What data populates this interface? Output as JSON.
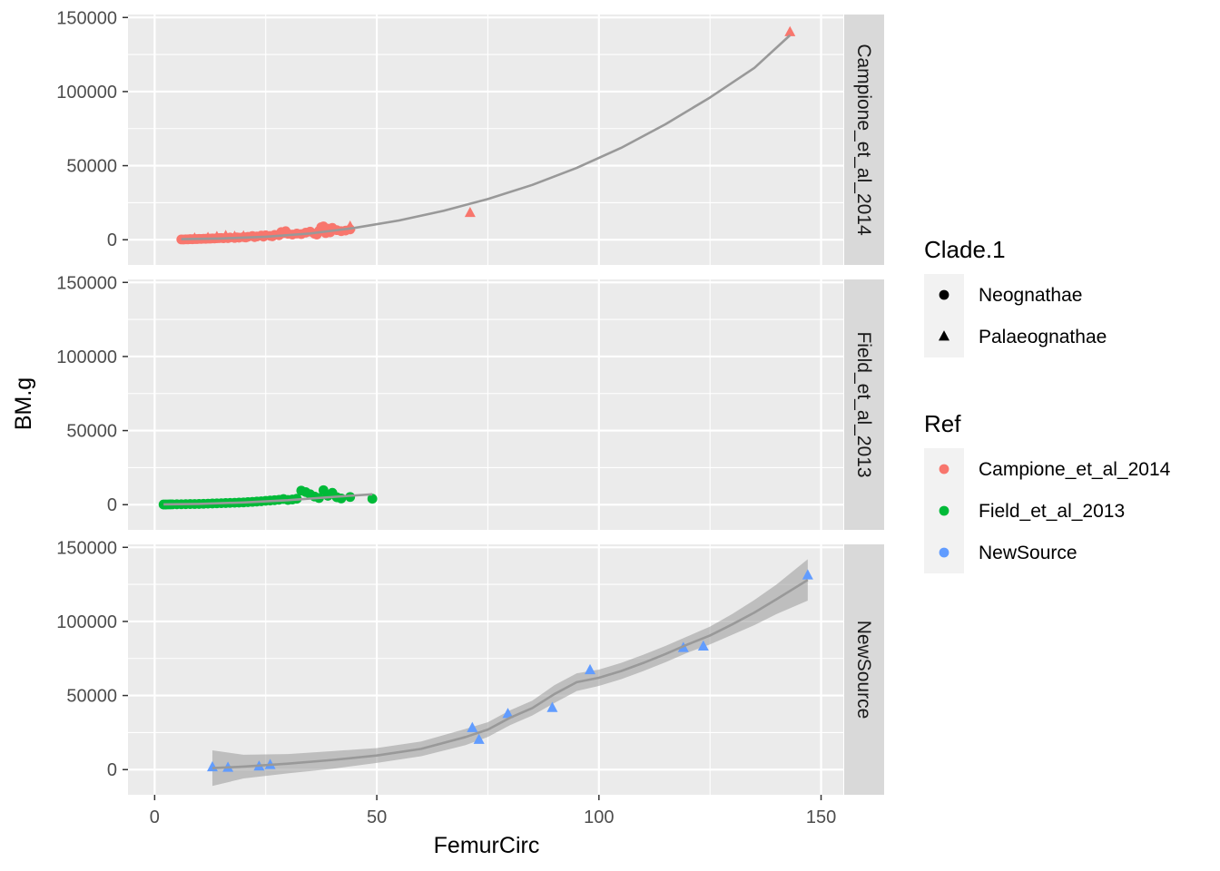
{
  "chart_data": {
    "type": "scatter",
    "facet_by": "Ref",
    "xlabel": "FemurCirc",
    "ylabel": "BM.g",
    "xlim": [
      -6,
      155
    ],
    "ylim": [
      -17000,
      152000
    ],
    "x_ticks": [
      0,
      50,
      100,
      150
    ],
    "x_tick_labels": [
      "0",
      "50",
      "100",
      "150"
    ],
    "y_ticks": [
      0,
      50000,
      100000,
      150000
    ],
    "y_tick_labels": [
      "0",
      "50000",
      "100000",
      "150000"
    ],
    "grid": true,
    "legend_position": "right",
    "legends": [
      {
        "title": "Clade.1",
        "entries": [
          {
            "label": "Neognathae",
            "shape": "circle",
            "color": "#000000"
          },
          {
            "label": "Palaeognathae",
            "shape": "triangle",
            "color": "#000000"
          }
        ]
      },
      {
        "title": "Ref",
        "entries": [
          {
            "label": "Campione_et_al_2014",
            "shape": "circle",
            "color": "#F8766D"
          },
          {
            "label": "Field_et_al_2013",
            "shape": "circle",
            "color": "#00BA38"
          },
          {
            "label": "NewSource",
            "shape": "circle",
            "color": "#619CFF"
          }
        ]
      }
    ],
    "facets": [
      {
        "label": "Campione_et_al_2014",
        "color": "#F8766D",
        "points": [
          {
            "x": 6,
            "y": 200,
            "clade": "Neognathae"
          },
          {
            "x": 6.5,
            "y": 150,
            "clade": "Neognathae"
          },
          {
            "x": 7,
            "y": 300,
            "clade": "Neognathae"
          },
          {
            "x": 7.5,
            "y": 250,
            "clade": "Neognathae"
          },
          {
            "x": 8,
            "y": 400,
            "clade": "Neognathae"
          },
          {
            "x": 8.5,
            "y": 350,
            "clade": "Neognathae"
          },
          {
            "x": 9,
            "y": 500,
            "clade": "Neognathae"
          },
          {
            "x": 9.5,
            "y": 450,
            "clade": "Neognathae"
          },
          {
            "x": 10,
            "y": 600,
            "clade": "Neognathae"
          },
          {
            "x": 10.5,
            "y": 550,
            "clade": "Neognathae"
          },
          {
            "x": 11,
            "y": 700,
            "clade": "Neognathae"
          },
          {
            "x": 11.5,
            "y": 650,
            "clade": "Neognathae"
          },
          {
            "x": 12,
            "y": 800,
            "clade": "Neognathae"
          },
          {
            "x": 12.5,
            "y": 750,
            "clade": "Neognathae"
          },
          {
            "x": 13,
            "y": 900,
            "clade": "Neognathae"
          },
          {
            "x": 13.5,
            "y": 850,
            "clade": "Neognathae"
          },
          {
            "x": 14,
            "y": 1000,
            "clade": "Neognathae"
          },
          {
            "x": 14.5,
            "y": 1100,
            "clade": "Neognathae"
          },
          {
            "x": 15,
            "y": 1200,
            "clade": "Neognathae"
          },
          {
            "x": 15.5,
            "y": 1000,
            "clade": "Neognathae"
          },
          {
            "x": 16,
            "y": 1300,
            "clade": "Neognathae"
          },
          {
            "x": 16.5,
            "y": 1100,
            "clade": "Neognathae"
          },
          {
            "x": 17,
            "y": 1500,
            "clade": "Neognathae"
          },
          {
            "x": 18,
            "y": 1200,
            "clade": "Neognathae"
          },
          {
            "x": 18.5,
            "y": 1600,
            "clade": "Neognathae"
          },
          {
            "x": 19,
            "y": 1400,
            "clade": "Neognathae"
          },
          {
            "x": 20,
            "y": 1800,
            "clade": "Neognathae"
          },
          {
            "x": 20.5,
            "y": 1500,
            "clade": "Neognathae"
          },
          {
            "x": 21,
            "y": 2000,
            "clade": "Neognathae"
          },
          {
            "x": 22,
            "y": 2500,
            "clade": "Neognathae"
          },
          {
            "x": 22.5,
            "y": 1800,
            "clade": "Neognathae"
          },
          {
            "x": 23,
            "y": 2200,
            "clade": "Neognathae"
          },
          {
            "x": 24,
            "y": 2800,
            "clade": "Neognathae"
          },
          {
            "x": 24.5,
            "y": 2100,
            "clade": "Neognathae"
          },
          {
            "x": 25,
            "y": 3000,
            "clade": "Neognathae"
          },
          {
            "x": 26,
            "y": 2600,
            "clade": "Neognathae"
          },
          {
            "x": 26.5,
            "y": 2300,
            "clade": "Neognathae"
          },
          {
            "x": 27,
            "y": 3300,
            "clade": "Neognathae"
          },
          {
            "x": 28,
            "y": 3000,
            "clade": "Neognathae"
          },
          {
            "x": 28.5,
            "y": 5200,
            "clade": "Neognathae"
          },
          {
            "x": 29,
            "y": 4500,
            "clade": "Neognathae"
          },
          {
            "x": 29.5,
            "y": 5800,
            "clade": "Neognathae"
          },
          {
            "x": 30,
            "y": 4000,
            "clade": "Neognathae"
          },
          {
            "x": 31,
            "y": 3500,
            "clade": "Neognathae"
          },
          {
            "x": 32,
            "y": 4200,
            "clade": "Neognathae"
          },
          {
            "x": 33,
            "y": 3800,
            "clade": "Neognathae"
          },
          {
            "x": 34,
            "y": 4800,
            "clade": "Neognathae"
          },
          {
            "x": 35,
            "y": 5500,
            "clade": "Neognathae"
          },
          {
            "x": 36,
            "y": 4000,
            "clade": "Neognathae"
          },
          {
            "x": 36.5,
            "y": 3500,
            "clade": "Neognathae"
          },
          {
            "x": 37,
            "y": 6000,
            "clade": "Neognathae"
          },
          {
            "x": 37.5,
            "y": 8500,
            "clade": "Neognathae"
          },
          {
            "x": 38,
            "y": 9000,
            "clade": "Neognathae"
          },
          {
            "x": 38.5,
            "y": 4500,
            "clade": "Neognathae"
          },
          {
            "x": 39,
            "y": 7500,
            "clade": "Neognathae"
          },
          {
            "x": 39.5,
            "y": 5000,
            "clade": "Neognathae"
          },
          {
            "x": 40,
            "y": 8000,
            "clade": "Neognathae"
          },
          {
            "x": 41,
            "y": 6500,
            "clade": "Neognathae"
          },
          {
            "x": 42,
            "y": 5800,
            "clade": "Neognathae"
          },
          {
            "x": 43,
            "y": 6200,
            "clade": "Neognathae"
          },
          {
            "x": 44,
            "y": 7000,
            "clade": "Neognathae"
          },
          {
            "x": 9,
            "y": 800,
            "clade": "Palaeognathae"
          },
          {
            "x": 12,
            "y": 1200,
            "clade": "Palaeognathae"
          },
          {
            "x": 14,
            "y": 1800,
            "clade": "Palaeognathae"
          },
          {
            "x": 16,
            "y": 2500,
            "clade": "Palaeognathae"
          },
          {
            "x": 18,
            "y": 2000,
            "clade": "Palaeognathae"
          },
          {
            "x": 20,
            "y": 2200,
            "clade": "Palaeognathae"
          },
          {
            "x": 44,
            "y": 8800,
            "clade": "Palaeognathae"
          },
          {
            "x": 71,
            "y": 18000,
            "clade": "Palaeognathae"
          },
          {
            "x": 143,
            "y": 140000,
            "clade": "Palaeognathae"
          }
        ],
        "smooth": {
          "x": [
            6,
            15,
            25,
            35,
            45,
            55,
            65,
            75,
            85,
            95,
            105,
            115,
            125,
            135,
            143
          ],
          "y": [
            400,
            900,
            2000,
            4200,
            8000,
            13000,
            19500,
            27500,
            37000,
            48500,
            62000,
            78000,
            96000,
            116000,
            138000
          ]
        },
        "band": null
      },
      {
        "label": "Field_et_al_2013",
        "color": "#00BA38",
        "points": [
          {
            "x": 2,
            "y": 100,
            "clade": "Neognathae"
          },
          {
            "x": 2.5,
            "y": 120,
            "clade": "Neognathae"
          },
          {
            "x": 3,
            "y": 150,
            "clade": "Neognathae"
          },
          {
            "x": 3.5,
            "y": 180,
            "clade": "Neognathae"
          },
          {
            "x": 4,
            "y": 200,
            "clade": "Neognathae"
          },
          {
            "x": 5,
            "y": 250,
            "clade": "Neognathae"
          },
          {
            "x": 6,
            "y": 300,
            "clade": "Neognathae"
          },
          {
            "x": 7,
            "y": 350,
            "clade": "Neognathae"
          },
          {
            "x": 8,
            "y": 400,
            "clade": "Neognathae"
          },
          {
            "x": 9,
            "y": 450,
            "clade": "Neognathae"
          },
          {
            "x": 10,
            "y": 500,
            "clade": "Neognathae"
          },
          {
            "x": 11,
            "y": 600,
            "clade": "Neognathae"
          },
          {
            "x": 12,
            "y": 700,
            "clade": "Neognathae"
          },
          {
            "x": 13,
            "y": 800,
            "clade": "Neognathae"
          },
          {
            "x": 14,
            "y": 900,
            "clade": "Neognathae"
          },
          {
            "x": 15,
            "y": 1000,
            "clade": "Neognathae"
          },
          {
            "x": 16,
            "y": 1100,
            "clade": "Neognathae"
          },
          {
            "x": 17,
            "y": 1200,
            "clade": "Neognathae"
          },
          {
            "x": 18,
            "y": 1300,
            "clade": "Neognathae"
          },
          {
            "x": 19,
            "y": 1400,
            "clade": "Neognathae"
          },
          {
            "x": 20,
            "y": 1500,
            "clade": "Neognathae"
          },
          {
            "x": 21,
            "y": 1700,
            "clade": "Neognathae"
          },
          {
            "x": 22,
            "y": 1900,
            "clade": "Neognathae"
          },
          {
            "x": 23,
            "y": 2100,
            "clade": "Neognathae"
          },
          {
            "x": 24,
            "y": 2300,
            "clade": "Neognathae"
          },
          {
            "x": 25,
            "y": 2600,
            "clade": "Neognathae"
          },
          {
            "x": 26,
            "y": 2800,
            "clade": "Neognathae"
          },
          {
            "x": 27,
            "y": 3000,
            "clade": "Neognathae"
          },
          {
            "x": 28,
            "y": 3300,
            "clade": "Neognathae"
          },
          {
            "x": 29,
            "y": 3800,
            "clade": "Neognathae"
          },
          {
            "x": 30,
            "y": 3200,
            "clade": "Neognathae"
          },
          {
            "x": 31,
            "y": 3500,
            "clade": "Neognathae"
          },
          {
            "x": 32,
            "y": 4000,
            "clade": "Neognathae"
          },
          {
            "x": 33,
            "y": 9500,
            "clade": "Neognathae"
          },
          {
            "x": 34,
            "y": 8500,
            "clade": "Neognathae"
          },
          {
            "x": 35,
            "y": 7000,
            "clade": "Neognathae"
          },
          {
            "x": 36,
            "y": 5500,
            "clade": "Neognathae"
          },
          {
            "x": 37,
            "y": 4500,
            "clade": "Neognathae"
          },
          {
            "x": 38,
            "y": 9800,
            "clade": "Neognathae"
          },
          {
            "x": 39,
            "y": 6000,
            "clade": "Neognathae"
          },
          {
            "x": 40,
            "y": 8000,
            "clade": "Neognathae"
          },
          {
            "x": 41,
            "y": 5000,
            "clade": "Neognathae"
          },
          {
            "x": 42,
            "y": 4200,
            "clade": "Neognathae"
          },
          {
            "x": 44,
            "y": 5200,
            "clade": "Neognathae"
          },
          {
            "x": 49,
            "y": 4000,
            "clade": "Neognathae"
          }
        ],
        "smooth": {
          "x": [
            2,
            10,
            20,
            30,
            40,
            49
          ],
          "y": [
            200,
            500,
            1500,
            3000,
            5200,
            7000
          ]
        },
        "band": null
      },
      {
        "label": "NewSource",
        "color": "#619CFF",
        "points": [
          {
            "x": 13,
            "y": 1500,
            "clade": "Palaeognathae"
          },
          {
            "x": 16.5,
            "y": 1200,
            "clade": "Palaeognathae"
          },
          {
            "x": 23.5,
            "y": 2000,
            "clade": "Palaeognathae"
          },
          {
            "x": 26,
            "y": 3000,
            "clade": "Palaeognathae"
          },
          {
            "x": 71.5,
            "y": 28000,
            "clade": "Palaeognathae"
          },
          {
            "x": 73,
            "y": 20000,
            "clade": "Palaeognathae"
          },
          {
            "x": 79.5,
            "y": 37500,
            "clade": "Palaeognathae"
          },
          {
            "x": 89.5,
            "y": 41500,
            "clade": "Palaeognathae"
          },
          {
            "x": 98,
            "y": 67000,
            "clade": "Palaeognathae"
          },
          {
            "x": 119,
            "y": 82000,
            "clade": "Palaeognathae"
          },
          {
            "x": 123.5,
            "y": 83000,
            "clade": "Palaeognathae"
          },
          {
            "x": 147,
            "y": 131000,
            "clade": "Palaeognathae"
          }
        ],
        "smooth": {
          "x": [
            13,
            20,
            30,
            40,
            50,
            60,
            70,
            75,
            80,
            85,
            90,
            95,
            100,
            105,
            110,
            115,
            120,
            125,
            130,
            135,
            140,
            147
          ],
          "y": [
            1000,
            2000,
            4000,
            6500,
            9500,
            14000,
            22000,
            27000,
            35000,
            41500,
            51000,
            59000,
            62000,
            66500,
            72000,
            78000,
            84500,
            90500,
            98000,
            106000,
            115000,
            128000
          ]
        },
        "band": {
          "lower": [
            -11000,
            -6000,
            -2500,
            500,
            4500,
            9000,
            16500,
            22000,
            30000,
            36500,
            45000,
            53000,
            56500,
            61000,
            66500,
            72500,
            79000,
            84500,
            91000,
            97500,
            105000,
            114000
          ],
          "upper": [
            13000,
            10000,
            10500,
            12500,
            14500,
            19000,
            27500,
            32000,
            40000,
            46500,
            57000,
            65000,
            67500,
            72000,
            77500,
            83500,
            90000,
            96500,
            105000,
            114500,
            125000,
            142000
          ]
        }
      }
    ]
  }
}
